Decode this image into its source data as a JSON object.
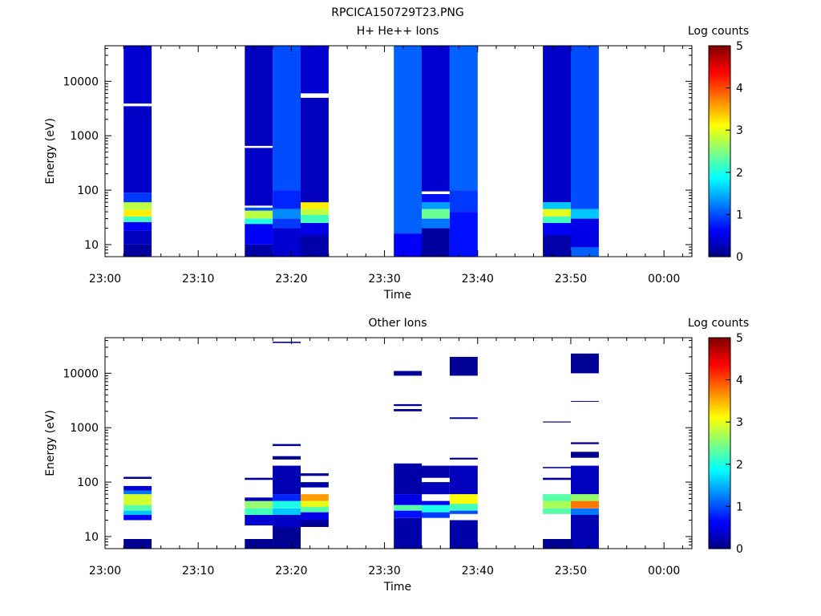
{
  "figure_title": "RPCICA150729T23.PNG",
  "chart_data": [
    {
      "type": "heatmap",
      "title": "H+ He++ Ions",
      "xlabel": "Time",
      "ylabel": "Energy (eV)",
      "colorbar_label": "Log counts",
      "y_scale": "log",
      "y_range_ev": [
        6,
        45000
      ],
      "x_range": [
        "23:00",
        "00:03"
      ],
      "x_tick_labels": [
        "23:00",
        "23:10",
        "23:20",
        "23:30",
        "23:40",
        "23:50",
        "00:00"
      ],
      "y_tick_labels": [
        "10",
        "100",
        "1000",
        "10000"
      ],
      "colorbar_range": [
        0,
        5
      ],
      "colorbar_ticks": [
        "0",
        "1",
        "2",
        "3",
        "4",
        "5"
      ],
      "columns": [
        {
          "start": "23:02",
          "end": "23:05",
          "bands": [
            {
              "lo": 6,
              "hi": 10,
              "v": 0.15
            },
            {
              "lo": 10,
              "hi": 18,
              "v": 0.3
            },
            {
              "lo": 18,
              "hi": 26,
              "v": 0.6
            },
            {
              "lo": 26,
              "hi": 33,
              "v": 2.2
            },
            {
              "lo": 33,
              "hi": 43,
              "v": 3.2
            },
            {
              "lo": 43,
              "hi": 60,
              "v": 2.8
            },
            {
              "lo": 60,
              "hi": 90,
              "v": 0.9
            },
            {
              "lo": 90,
              "hi": 3500,
              "v": 0.35
            },
            {
              "lo": 3500,
              "hi": 3900,
              "v": -1
            },
            {
              "lo": 3900,
              "hi": 45000,
              "v": 0.4
            }
          ]
        },
        {
          "start": "23:15",
          "end": "23:18",
          "bands": [
            {
              "lo": 6,
              "hi": 10,
              "v": 0.2
            },
            {
              "lo": 10,
              "hi": 24,
              "v": 0.6
            },
            {
              "lo": 24,
              "hi": 30,
              "v": 2.0
            },
            {
              "lo": 30,
              "hi": 42,
              "v": 2.8
            },
            {
              "lo": 42,
              "hi": 48,
              "v": 1.0
            },
            {
              "lo": 48,
              "hi": 52,
              "v": -1
            },
            {
              "lo": 52,
              "hi": 600,
              "v": 0.35
            },
            {
              "lo": 600,
              "hi": 650,
              "v": -1
            },
            {
              "lo": 650,
              "hi": 45000,
              "v": 0.3
            }
          ]
        },
        {
          "start": "23:18",
          "end": "23:21",
          "bands": [
            {
              "lo": 6,
              "hi": 20,
              "v": 0.4
            },
            {
              "lo": 20,
              "hi": 30,
              "v": 0.9
            },
            {
              "lo": 30,
              "hi": 45,
              "v": 1.3
            },
            {
              "lo": 45,
              "hi": 100,
              "v": 0.8
            },
            {
              "lo": 100,
              "hi": 45000,
              "v": 1.0
            }
          ]
        },
        {
          "start": "23:21",
          "end": "23:24",
          "bands": [
            {
              "lo": 6,
              "hi": 15,
              "v": 0.2
            },
            {
              "lo": 15,
              "hi": 25,
              "v": 0.5
            },
            {
              "lo": 25,
              "hi": 35,
              "v": 2.2
            },
            {
              "lo": 35,
              "hi": 45,
              "v": 2.8
            },
            {
              "lo": 45,
              "hi": 60,
              "v": 3.2
            },
            {
              "lo": 60,
              "hi": 5000,
              "v": 0.3
            },
            {
              "lo": 5000,
              "hi": 6000,
              "v": -1
            },
            {
              "lo": 6000,
              "hi": 45000,
              "v": 0.4
            }
          ]
        },
        {
          "start": "23:31",
          "end": "23:34",
          "bands": [
            {
              "lo": 6,
              "hi": 16,
              "v": 0.6
            },
            {
              "lo": 16,
              "hi": 45000,
              "v": 1.1
            }
          ]
        },
        {
          "start": "23:34",
          "end": "23:37",
          "bands": [
            {
              "lo": 6,
              "hi": 20,
              "v": 0.15
            },
            {
              "lo": 20,
              "hi": 30,
              "v": 1.2
            },
            {
              "lo": 30,
              "hi": 45,
              "v": 2.4
            },
            {
              "lo": 45,
              "hi": 60,
              "v": 1.4
            },
            {
              "lo": 60,
              "hi": 85,
              "v": 0.7
            },
            {
              "lo": 85,
              "hi": 95,
              "v": -1
            },
            {
              "lo": 95,
              "hi": 45000,
              "v": 0.4
            }
          ]
        },
        {
          "start": "23:37",
          "end": "23:40",
          "bands": [
            {
              "lo": 6,
              "hi": 40,
              "v": 0.7
            },
            {
              "lo": 40,
              "hi": 100,
              "v": 0.9
            },
            {
              "lo": 100,
              "hi": 45000,
              "v": 1.1
            }
          ]
        },
        {
          "start": "23:47",
          "end": "23:50",
          "bands": [
            {
              "lo": 6,
              "hi": 15,
              "v": 0.2
            },
            {
              "lo": 15,
              "hi": 25,
              "v": 0.6
            },
            {
              "lo": 25,
              "hi": 33,
              "v": 2.2
            },
            {
              "lo": 33,
              "hi": 45,
              "v": 3.0
            },
            {
              "lo": 45,
              "hi": 60,
              "v": 1.6
            },
            {
              "lo": 60,
              "hi": 45000,
              "v": 0.35
            }
          ]
        },
        {
          "start": "23:50",
          "end": "23:53",
          "bands": [
            {
              "lo": 6,
              "hi": 9,
              "v": 1.1
            },
            {
              "lo": 9,
              "hi": 30,
              "v": 0.5
            },
            {
              "lo": 30,
              "hi": 45,
              "v": 1.6
            },
            {
              "lo": 45,
              "hi": 45000,
              "v": 1.0
            }
          ]
        }
      ]
    },
    {
      "type": "heatmap",
      "title": "Other Ions",
      "xlabel": "Time",
      "ylabel": "Energy (eV)",
      "colorbar_label": "Log counts",
      "y_scale": "log",
      "y_range_ev": [
        6,
        45000
      ],
      "x_range": [
        "23:00",
        "00:03"
      ],
      "x_tick_labels": [
        "23:00",
        "23:10",
        "23:20",
        "23:30",
        "23:40",
        "23:50",
        "00:00"
      ],
      "y_tick_labels": [
        "10",
        "100",
        "1000",
        "10000"
      ],
      "colorbar_range": [
        0,
        5
      ],
      "colorbar_ticks": [
        "0",
        "1",
        "2",
        "3",
        "4",
        "5"
      ],
      "columns": [
        {
          "start": "23:02",
          "end": "23:05",
          "bands": [
            {
              "lo": 6,
              "hi": 9,
              "v": 0.1
            },
            {
              "lo": 20,
              "hi": 25,
              "v": 0.6
            },
            {
              "lo": 25,
              "hi": 30,
              "v": 1.6
            },
            {
              "lo": 30,
              "hi": 38,
              "v": 2.3
            },
            {
              "lo": 38,
              "hi": 60,
              "v": 2.9
            },
            {
              "lo": 60,
              "hi": 70,
              "v": 1.2
            },
            {
              "lo": 70,
              "hi": 85,
              "v": 0.4
            },
            {
              "lo": 115,
              "hi": 125,
              "v": 0.1
            }
          ]
        },
        {
          "start": "23:15",
          "end": "23:18",
          "bands": [
            {
              "lo": 6,
              "hi": 9,
              "v": 0.1
            },
            {
              "lo": 16,
              "hi": 25,
              "v": 0.4
            },
            {
              "lo": 25,
              "hi": 33,
              "v": 2.2
            },
            {
              "lo": 33,
              "hi": 45,
              "v": 2.6
            },
            {
              "lo": 45,
              "hi": 52,
              "v": 0.3
            },
            {
              "lo": 110,
              "hi": 120,
              "v": 0.1
            }
          ]
        },
        {
          "start": "23:18",
          "end": "23:21",
          "bands": [
            {
              "lo": 6,
              "hi": 15,
              "v": 0.1
            },
            {
              "lo": 15,
              "hi": 25,
              "v": 0.35
            },
            {
              "lo": 25,
              "hi": 33,
              "v": 1.6
            },
            {
              "lo": 33,
              "hi": 45,
              "v": 2.0
            },
            {
              "lo": 45,
              "hi": 60,
              "v": 0.8
            },
            {
              "lo": 60,
              "hi": 200,
              "v": 0.25
            },
            {
              "lo": 260,
              "hi": 300,
              "v": 0.1
            },
            {
              "lo": 460,
              "hi": 500,
              "v": 0.1
            },
            {
              "lo": 36000,
              "hi": 38000,
              "v": 0.1
            }
          ]
        },
        {
          "start": "23:21",
          "end": "23:24",
          "bands": [
            {
              "lo": 15,
              "hi": 20,
              "v": 0.1
            },
            {
              "lo": 20,
              "hi": 28,
              "v": 0.5
            },
            {
              "lo": 28,
              "hi": 35,
              "v": 2.3
            },
            {
              "lo": 35,
              "hi": 45,
              "v": 3.0
            },
            {
              "lo": 45,
              "hi": 60,
              "v": 3.6
            },
            {
              "lo": 80,
              "hi": 100,
              "v": 0.2
            },
            {
              "lo": 130,
              "hi": 145,
              "v": 0.1
            }
          ]
        },
        {
          "start": "23:31",
          "end": "23:34",
          "bands": [
            {
              "lo": 6,
              "hi": 22,
              "v": 0.2
            },
            {
              "lo": 22,
              "hi": 30,
              "v": 0.7
            },
            {
              "lo": 30,
              "hi": 38,
              "v": 2.3
            },
            {
              "lo": 38,
              "hi": 60,
              "v": 0.5
            },
            {
              "lo": 60,
              "hi": 220,
              "v": 0.2
            },
            {
              "lo": 2000,
              "hi": 2200,
              "v": 0.1
            },
            {
              "lo": 2500,
              "hi": 2700,
              "v": 0.1
            },
            {
              "lo": 9000,
              "hi": 11000,
              "v": 0.1
            }
          ]
        },
        {
          "start": "23:34",
          "end": "23:37",
          "bands": [
            {
              "lo": 22,
              "hi": 28,
              "v": 0.9
            },
            {
              "lo": 28,
              "hi": 38,
              "v": 2.0
            },
            {
              "lo": 38,
              "hi": 45,
              "v": 0.6
            },
            {
              "lo": 60,
              "hi": 100,
              "v": 0.3
            },
            {
              "lo": 120,
              "hi": 200,
              "v": 0.2
            }
          ]
        },
        {
          "start": "23:37",
          "end": "23:40",
          "bands": [
            {
              "lo": 6,
              "hi": 20,
              "v": 0.2
            },
            {
              "lo": 26,
              "hi": 30,
              "v": 1.0
            },
            {
              "lo": 30,
              "hi": 40,
              "v": 2.2
            },
            {
              "lo": 40,
              "hi": 60,
              "v": 3.1
            },
            {
              "lo": 60,
              "hi": 200,
              "v": 0.3
            },
            {
              "lo": 260,
              "hi": 280,
              "v": 0.1
            },
            {
              "lo": 1450,
              "hi": 1550,
              "v": 0.1
            },
            {
              "lo": 9000,
              "hi": 20000,
              "v": 0.1
            }
          ]
        },
        {
          "start": "23:47",
          "end": "23:50",
          "bands": [
            {
              "lo": 6,
              "hi": 9,
              "v": 0.1
            },
            {
              "lo": 26,
              "hi": 33,
              "v": 2.3
            },
            {
              "lo": 33,
              "hi": 45,
              "v": 2.7
            },
            {
              "lo": 45,
              "hi": 60,
              "v": 2.3
            },
            {
              "lo": 110,
              "hi": 120,
              "v": 0.1
            },
            {
              "lo": 180,
              "hi": 190,
              "v": 0.1
            },
            {
              "lo": 1250,
              "hi": 1300,
              "v": 0.1
            }
          ]
        },
        {
          "start": "23:50",
          "end": "23:53",
          "bands": [
            {
              "lo": 6,
              "hi": 25,
              "v": 0.25
            },
            {
              "lo": 25,
              "hi": 33,
              "v": 1.2
            },
            {
              "lo": 33,
              "hi": 45,
              "v": 3.8
            },
            {
              "lo": 45,
              "hi": 60,
              "v": 2.6
            },
            {
              "lo": 60,
              "hi": 200,
              "v": 0.3
            },
            {
              "lo": 280,
              "hi": 360,
              "v": 0.1
            },
            {
              "lo": 500,
              "hi": 540,
              "v": 0.1
            },
            {
              "lo": 3000,
              "hi": 3100,
              "v": 0.1
            },
            {
              "lo": 10000,
              "hi": 23000,
              "v": 0.1
            }
          ]
        }
      ]
    }
  ]
}
